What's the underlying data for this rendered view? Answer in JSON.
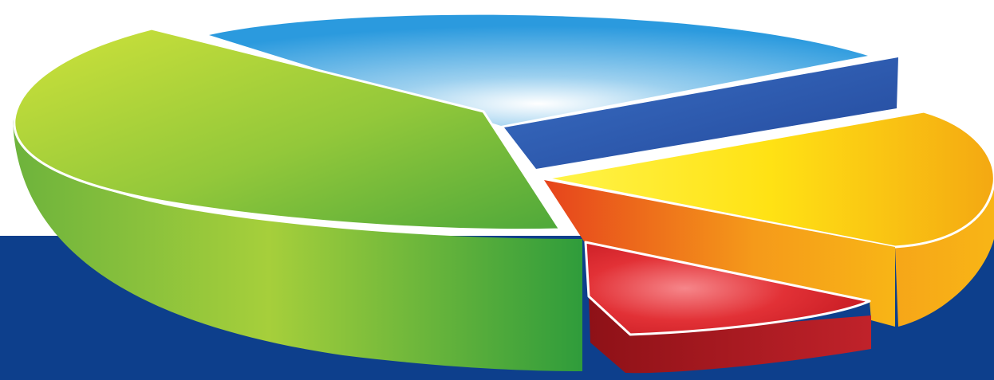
{
  "chart_data": {
    "type": "pie",
    "style": "3d-exploded",
    "values": [
      40,
      24,
      8,
      20,
      8
    ],
    "colors": {
      "background": "#ffffff",
      "band": "#0d3f8c",
      "slices": [
        "#7cc232",
        "#36a3e0",
        "#3160b3",
        "#f6b412",
        "#d9262a"
      ]
    }
  }
}
